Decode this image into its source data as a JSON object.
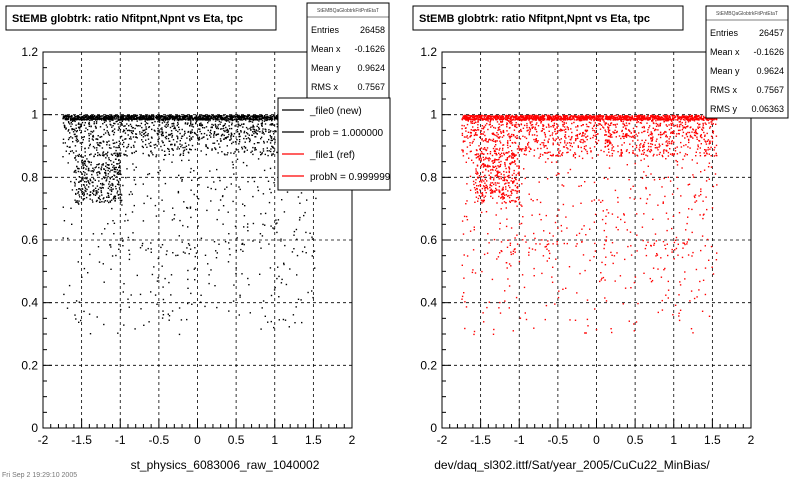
{
  "chart_data": [
    {
      "type": "scatter",
      "title": "StEMB globtrk: ratio Nfitpnt,Npnt vs Eta, tpc",
      "xlabel": "st_physics_6083006_raw_1040002",
      "ylabel": "",
      "xlim": [
        -2,
        2
      ],
      "ylim": [
        0,
        1.2
      ],
      "xticks": [
        "-2",
        "-1.5",
        "-1",
        "-0.5",
        "0",
        "0.5",
        "1",
        "1.5",
        "2"
      ],
      "yticks": [
        "0",
        "0.2",
        "0.4",
        "0.6",
        "0.8",
        "1",
        "1.2"
      ],
      "grid": true,
      "marker_color": "#000000",
      "series": [
        {
          "name": "",
          "bands": [
            {
              "x": [
                -1.75,
                1.55
              ],
              "y": [
                0.985,
                1.0
              ],
              "weight": 0.45
            },
            {
              "x": [
                -1.75,
                1.55
              ],
              "y": [
                0.93,
                0.99
              ],
              "weight": 0.2
            },
            {
              "x": [
                -1.75,
                1.55
              ],
              "y": [
                0.87,
                0.93
              ],
              "weight": 0.12
            },
            {
              "x": [
                -1.6,
                -1.0
              ],
              "y": [
                0.72,
                0.88
              ],
              "weight": 0.1
            },
            {
              "x": [
                -1.75,
                1.55
              ],
              "y": [
                0.55,
                0.87
              ],
              "weight": 0.08
            },
            {
              "x": [
                -1.75,
                1.55
              ],
              "y": [
                0.3,
                0.6
              ],
              "weight": 0.05
            }
          ]
        }
      ],
      "stats": {
        "header": "StEMBQaGlobtrkFitPntEtaT",
        "rows": [
          {
            "label": "Entries",
            "value": "26458"
          },
          {
            "label": "Mean x",
            "value": "-0.1626"
          },
          {
            "label": "Mean y",
            "value": "0.9624"
          },
          {
            "label": "RMS x",
            "value": "0.7567"
          }
        ]
      },
      "legend": {
        "placement": "top-right",
        "entries": [
          {
            "label": "_file0 (new)",
            "color": "#000000"
          },
          {
            "label": "prob = 1.000000",
            "color": "#000000"
          },
          {
            "label": "_file1 (ref)",
            "color": "#ff0000"
          },
          {
            "label": "probN = 0.999999",
            "color": "#ff0000"
          }
        ]
      }
    },
    {
      "type": "scatter",
      "title": "StEMB globtrk: ratio Nfitpnt,Npnt vs Eta, tpc",
      "xlabel": "dev/daq_sl302.ittf/Sat/year_2005/CuCu22_MinBias/",
      "ylabel": "",
      "xlim": [
        -2,
        2
      ],
      "ylim": [
        0,
        1.2
      ],
      "xticks": [
        "-2",
        "-1.5",
        "-1",
        "-0.5",
        "0",
        "0.5",
        "1",
        "1.5",
        "2"
      ],
      "yticks": [
        "0",
        "0.2",
        "0.4",
        "0.6",
        "0.8",
        "1",
        "1.2"
      ],
      "grid": true,
      "marker_color": "#ff0000",
      "series": [
        {
          "name": "",
          "bands": [
            {
              "x": [
                -1.75,
                1.55
              ],
              "y": [
                0.985,
                1.0
              ],
              "weight": 0.4
            },
            {
              "x": [
                -1.75,
                1.55
              ],
              "y": [
                0.93,
                0.99
              ],
              "weight": 0.2
            },
            {
              "x": [
                -1.75,
                1.55
              ],
              "y": [
                0.87,
                0.93
              ],
              "weight": 0.14
            },
            {
              "x": [
                -1.6,
                -1.0
              ],
              "y": [
                0.72,
                0.88
              ],
              "weight": 0.1
            },
            {
              "x": [
                -1.75,
                1.55
              ],
              "y": [
                0.55,
                0.87
              ],
              "weight": 0.1
            },
            {
              "x": [
                -1.75,
                1.55
              ],
              "y": [
                0.3,
                0.6
              ],
              "weight": 0.06
            }
          ]
        }
      ],
      "stats": {
        "header": "StEMBQaGlobtrkFitPntEtaT",
        "rows": [
          {
            "label": "Entries",
            "value": "26457"
          },
          {
            "label": "Mean x",
            "value": "-0.1626"
          },
          {
            "label": "Mean y",
            "value": "0.9624"
          },
          {
            "label": "RMS x",
            "value": "0.7567"
          },
          {
            "label": "RMS y",
            "value": "0.06363"
          }
        ]
      }
    }
  ],
  "corner_note": "Fri Sep 2 19:29:10 2005"
}
